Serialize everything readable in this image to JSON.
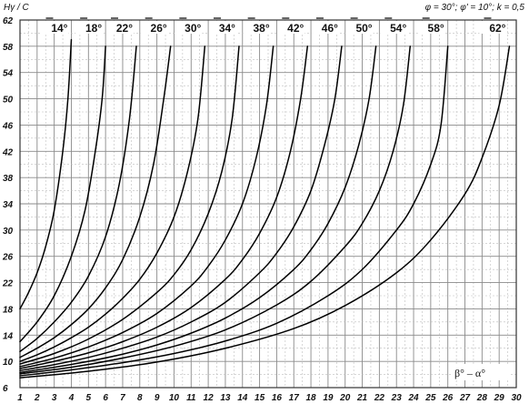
{
  "chart_data": {
    "type": "line",
    "ylabel": "Hγ / C",
    "xlabel": "β° – α°",
    "params": "φ = 30°; φ' = 10°; k = 0,5",
    "xlim": [
      1,
      30
    ],
    "ylim": [
      6,
      62
    ],
    "x_ticks": [
      "1",
      "2",
      "3",
      "4",
      "5",
      "6",
      "7",
      "8",
      "9",
      "10",
      "11",
      "12",
      "13",
      "14",
      "15",
      "16",
      "17",
      "18",
      "19",
      "20",
      "21",
      "22",
      "23",
      "24",
      "25",
      "26",
      "27",
      "28",
      "29",
      "30"
    ],
    "y_ticks": [
      "6",
      "10",
      "14",
      "18",
      "22",
      "26",
      "30",
      "34",
      "38",
      "42",
      "46",
      "50",
      "54",
      "58",
      "62"
    ],
    "grid": true,
    "series": [
      {
        "name": "14°",
        "points": [
          [
            1,
            18
          ],
          [
            1.5,
            20.5
          ],
          [
            2,
            23.5
          ],
          [
            2.5,
            27.5
          ],
          [
            3,
            33
          ],
          [
            3.5,
            42
          ],
          [
            3.8,
            50
          ],
          [
            4,
            59
          ]
        ]
      },
      {
        "name": "18°",
        "points": [
          [
            1,
            13
          ],
          [
            2,
            16
          ],
          [
            3,
            20
          ],
          [
            4,
            26
          ],
          [
            4.8,
            33
          ],
          [
            5.4,
            42
          ],
          [
            5.8,
            50
          ],
          [
            6,
            58
          ]
        ]
      },
      {
        "name": "22°",
        "points": [
          [
            1,
            11.5
          ],
          [
            2,
            13.5
          ],
          [
            3,
            16
          ],
          [
            4,
            19
          ],
          [
            5,
            23
          ],
          [
            6,
            29
          ],
          [
            6.8,
            37
          ],
          [
            7.4,
            47
          ],
          [
            7.8,
            58
          ]
        ]
      },
      {
        "name": "26°",
        "points": [
          [
            1,
            10.6
          ],
          [
            2,
            12
          ],
          [
            3,
            13.6
          ],
          [
            4,
            15.6
          ],
          [
            5,
            18
          ],
          [
            6,
            21.2
          ],
          [
            7,
            25.5
          ],
          [
            8,
            32
          ],
          [
            8.8,
            40
          ],
          [
            9.4,
            50
          ],
          [
            9.8,
            58
          ]
        ]
      },
      {
        "name": "30°",
        "points": [
          [
            1,
            10
          ],
          [
            2,
            11
          ],
          [
            3,
            12.2
          ],
          [
            4,
            13.6
          ],
          [
            5,
            15.2
          ],
          [
            6,
            17.2
          ],
          [
            7,
            19.6
          ],
          [
            8,
            22.5
          ],
          [
            9,
            26.5
          ],
          [
            10,
            32
          ],
          [
            10.8,
            39
          ],
          [
            11.4,
            47
          ],
          [
            11.8,
            58
          ]
        ]
      },
      {
        "name": "34°",
        "points": [
          [
            1,
            9.6
          ],
          [
            3,
            11.2
          ],
          [
            5,
            13.4
          ],
          [
            7,
            16.4
          ],
          [
            9,
            20.5
          ],
          [
            10,
            23.2
          ],
          [
            11,
            27
          ],
          [
            12,
            32.5
          ],
          [
            12.8,
            39
          ],
          [
            13.4,
            47
          ],
          [
            13.8,
            58
          ]
        ]
      },
      {
        "name": "38°",
        "points": [
          [
            1,
            9.2
          ],
          [
            3,
            10.5
          ],
          [
            5,
            12.2
          ],
          [
            7,
            14.4
          ],
          [
            9,
            17.3
          ],
          [
            11,
            21.5
          ],
          [
            12,
            24.5
          ],
          [
            13,
            28.5
          ],
          [
            14,
            34
          ],
          [
            14.8,
            41
          ],
          [
            15.4,
            49
          ],
          [
            15.8,
            58
          ]
        ]
      },
      {
        "name": "42°",
        "points": [
          [
            1,
            8.9
          ],
          [
            3,
            10
          ],
          [
            5,
            11.3
          ],
          [
            7,
            13
          ],
          [
            9,
            15.2
          ],
          [
            11,
            18.2
          ],
          [
            13,
            22.5
          ],
          [
            14,
            25.5
          ],
          [
            15,
            29.5
          ],
          [
            16,
            35
          ],
          [
            16.8,
            42
          ],
          [
            17.4,
            50
          ],
          [
            17.8,
            58
          ]
        ]
      },
      {
        "name": "46°",
        "points": [
          [
            1,
            8.6
          ],
          [
            3,
            9.5
          ],
          [
            5,
            10.6
          ],
          [
            7,
            12
          ],
          [
            9,
            13.7
          ],
          [
            11,
            16
          ],
          [
            13,
            19
          ],
          [
            15,
            23.5
          ],
          [
            16,
            26.5
          ],
          [
            17,
            30.5
          ],
          [
            18,
            36
          ],
          [
            18.8,
            43
          ],
          [
            19.4,
            50
          ],
          [
            19.8,
            58
          ]
        ]
      },
      {
        "name": "50°",
        "points": [
          [
            1,
            8.3
          ],
          [
            3,
            9.1
          ],
          [
            5,
            10
          ],
          [
            7,
            11.1
          ],
          [
            9,
            12.5
          ],
          [
            11,
            14.3
          ],
          [
            13,
            16.6
          ],
          [
            15,
            19.7
          ],
          [
            17,
            24
          ],
          [
            18,
            27
          ],
          [
            19,
            31
          ],
          [
            20,
            36.5
          ],
          [
            20.8,
            43
          ],
          [
            21.4,
            50
          ],
          [
            21.8,
            58
          ]
        ]
      },
      {
        "name": "54°",
        "points": [
          [
            1,
            8.1
          ],
          [
            4,
            9.1
          ],
          [
            7,
            10.5
          ],
          [
            10,
            12.3
          ],
          [
            13,
            14.8
          ],
          [
            16,
            18.6
          ],
          [
            18,
            22.2
          ],
          [
            20,
            27.5
          ],
          [
            21,
            31
          ],
          [
            22,
            36
          ],
          [
            22.8,
            42
          ],
          [
            23.4,
            49
          ],
          [
            23.8,
            58
          ]
        ]
      },
      {
        "name": "58°",
        "points": [
          [
            1,
            7.8
          ],
          [
            4,
            8.7
          ],
          [
            7,
            9.8
          ],
          [
            10,
            11.2
          ],
          [
            13,
            13.1
          ],
          [
            16,
            15.8
          ],
          [
            19,
            20
          ],
          [
            21,
            24
          ],
          [
            23,
            30
          ],
          [
            24,
            34
          ],
          [
            25,
            40
          ],
          [
            25.6,
            46
          ],
          [
            26,
            58
          ]
        ]
      },
      {
        "name": "62°",
        "points": [
          [
            1,
            7.5
          ],
          [
            5,
            8.5
          ],
          [
            9,
            9.9
          ],
          [
            13,
            12
          ],
          [
            17,
            15
          ],
          [
            20,
            18.5
          ],
          [
            23,
            23.5
          ],
          [
            25,
            28.5
          ],
          [
            27,
            35.5
          ],
          [
            28,
            41
          ],
          [
            29,
            49
          ],
          [
            29.6,
            58
          ]
        ]
      }
    ]
  }
}
